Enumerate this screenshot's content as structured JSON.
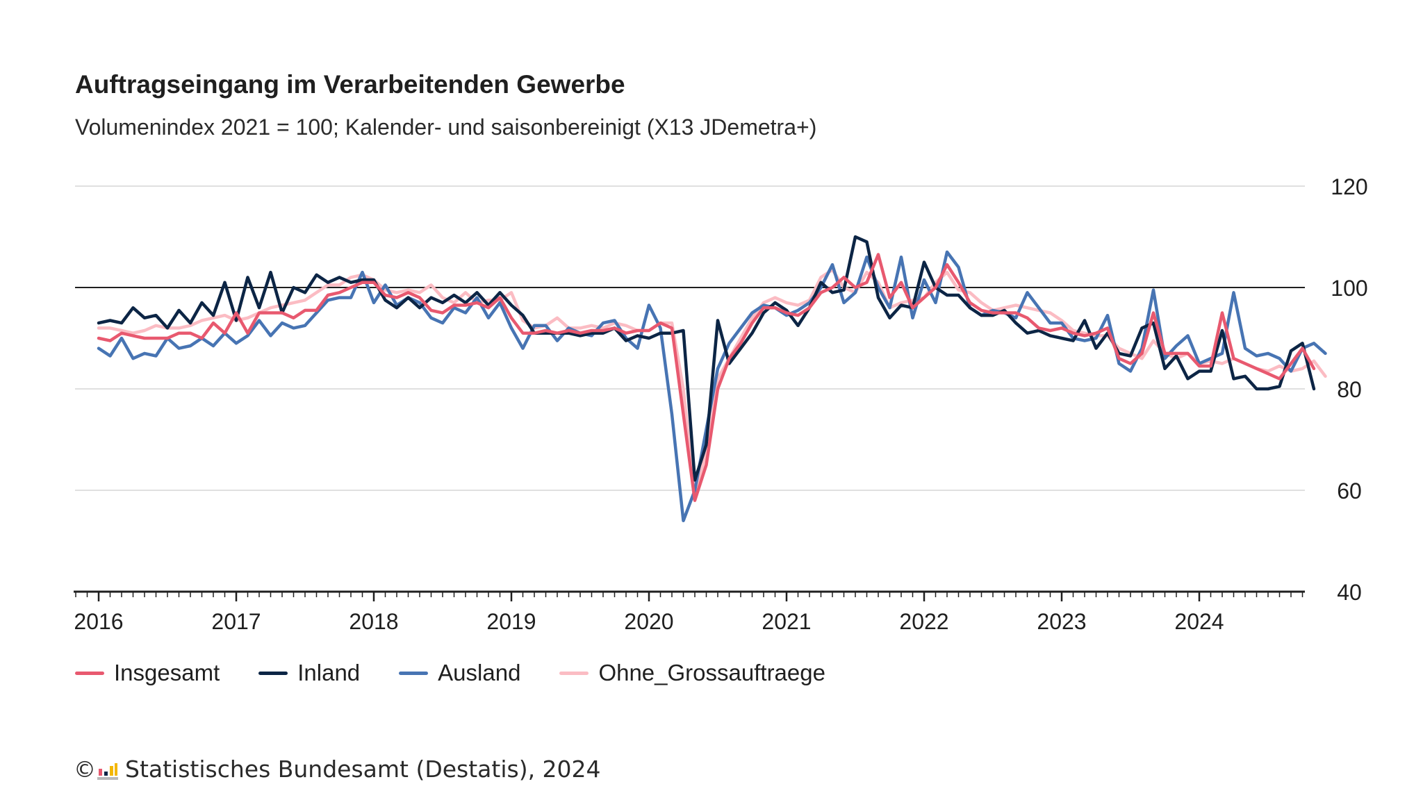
{
  "title": "Auftragseingang im Verarbeitenden Gewerbe",
  "subtitle": "Volumenindex 2021 = 100; Kalender- und saisonbereinigt (X13 JDemetra+)",
  "footer": {
    "copyright_symbol": "©",
    "text": "Statistisches Bundesamt (Destatis), 2024"
  },
  "chart_data": {
    "type": "line",
    "x_start": "2016-01",
    "x_end": "2024-08",
    "x_tick_labels": [
      "2016",
      "2017",
      "2018",
      "2019",
      "2020",
      "2021",
      "2022",
      "2023",
      "2024"
    ],
    "y_ticks": [
      40,
      60,
      80,
      100,
      120
    ],
    "ylim": [
      40,
      120
    ],
    "reference_line": 100,
    "grid": true,
    "y_axis_side": "right",
    "legend_position": "bottom-left",
    "series": [
      {
        "name": "Insgesamt",
        "color": "#e8596f",
        "values": [
          90,
          89.5,
          91,
          90.5,
          90,
          90,
          90,
          91,
          91,
          90,
          93,
          91,
          95,
          91,
          95,
          95,
          95,
          94,
          95.5,
          95.5,
          98.5,
          99,
          100,
          101,
          101,
          98.5,
          98,
          99,
          98,
          95.5,
          95,
          96.5,
          96.5,
          97,
          96,
          98,
          94,
          91,
          91,
          91.5,
          91,
          91.5,
          91,
          91.5,
          91.5,
          92,
          91,
          91.5,
          91.5,
          93,
          92,
          75,
          58,
          65,
          80,
          86,
          89,
          93,
          96,
          96,
          95,
          94.5,
          96,
          99,
          100,
          102,
          100,
          101,
          106.5,
          98,
          101,
          96,
          98,
          100,
          104.5,
          101,
          97,
          95.5,
          95,
          95,
          95,
          94,
          92,
          91.5,
          92,
          91,
          90.5,
          91,
          92,
          86,
          85,
          87,
          95,
          87,
          87,
          87,
          84.5,
          84.5,
          95,
          86,
          85,
          84,
          83,
          82,
          85,
          88,
          84
        ]
      },
      {
        "name": "Inland",
        "color": "#0c2545",
        "values": [
          93,
          93.5,
          93,
          96,
          94,
          94.5,
          92,
          95.5,
          93,
          97,
          94.5,
          101,
          93.5,
          102,
          96,
          103,
          95,
          100,
          99,
          102.5,
          101,
          102,
          101,
          101.5,
          101.5,
          97.5,
          96,
          98,
          96,
          98,
          97,
          98.5,
          97,
          99,
          96.5,
          99,
          96.5,
          94.5,
          91,
          91,
          91,
          91,
          90.5,
          91,
          91,
          92,
          89.5,
          90.5,
          90,
          91,
          91,
          91.5,
          62,
          69,
          93.5,
          85,
          88,
          91,
          95,
          97,
          95.5,
          92.5,
          96,
          101,
          99,
          99.5,
          110,
          109,
          98,
          94,
          96.5,
          96,
          105,
          100,
          98.5,
          98.5,
          96,
          94.5,
          94.5,
          95.5,
          93,
          91,
          91.5,
          90.5,
          90,
          89.5,
          93.5,
          88,
          91,
          87,
          86.5,
          92,
          93,
          84,
          86.5,
          82,
          83.5,
          83.5,
          91.5,
          82,
          82.5,
          80,
          80,
          80.5,
          87.5,
          89,
          80
        ]
      },
      {
        "name": "Ausland",
        "color": "#4774b3",
        "values": [
          88,
          86.5,
          90,
          86,
          87,
          86.5,
          90,
          88,
          88.5,
          90,
          88.5,
          91,
          89,
          90.5,
          93.5,
          90.5,
          93,
          92,
          92.5,
          95,
          97.5,
          98,
          98,
          103,
          97,
          100.5,
          96.5,
          98,
          97,
          94,
          93,
          96,
          95,
          98,
          94,
          97,
          92,
          88,
          92.5,
          92.5,
          89.5,
          92,
          91,
          90.5,
          93,
          93.5,
          90,
          88,
          96.5,
          92,
          75,
          54,
          60,
          72,
          84,
          89,
          92,
          95,
          96.5,
          96,
          94.5,
          95.5,
          97,
          100,
          104.5,
          97,
          99,
          106,
          100,
          96,
          106,
          94,
          101.5,
          97,
          107,
          104,
          96,
          94.5,
          95.5,
          95,
          94,
          99,
          96,
          93,
          93,
          90,
          89.5,
          90,
          94.5,
          85,
          83.5,
          88,
          99.5,
          86,
          88.5,
          90.5,
          85,
          86,
          87,
          99,
          88,
          86.5,
          87,
          86,
          83.5,
          88,
          89,
          87
        ]
      },
      {
        "name": "Ohne_Grossauftraege",
        "color": "#fbbcc3",
        "values": [
          92,
          92,
          91.5,
          91,
          91.5,
          92.5,
          92,
          92,
          92.5,
          93.5,
          94,
          94.5,
          93.5,
          94,
          95,
          96,
          96.5,
          97,
          97.5,
          99,
          100.5,
          100.5,
          102,
          102.5,
          101.5,
          99.5,
          99,
          99.5,
          99,
          100.5,
          98,
          97,
          99,
          97,
          97.5,
          97.5,
          99,
          93.5,
          92,
          92.5,
          94,
          92,
          92,
          92.5,
          92,
          93,
          92.5,
          91.5,
          91.5,
          93,
          93,
          80,
          58,
          68,
          82,
          86,
          90,
          94,
          97,
          98,
          97,
          96.5,
          97.5,
          102,
          103.5,
          100,
          99,
          103,
          101,
          96,
          97,
          97.5,
          98,
          101,
          103,
          99.5,
          99,
          97,
          95.5,
          96,
          96.5,
          96,
          95.5,
          95,
          93.5,
          91.5,
          91,
          90.5,
          90.5,
          88,
          87,
          86,
          89.5,
          87,
          86,
          87,
          85,
          85.5,
          85,
          86,
          85,
          84,
          83.5,
          84.5,
          83.5,
          84,
          85.5,
          82.5
        ]
      }
    ]
  }
}
